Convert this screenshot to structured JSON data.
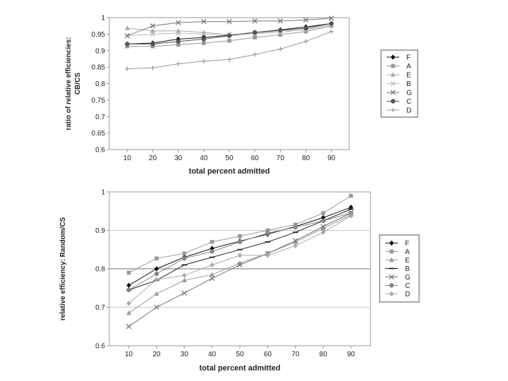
{
  "chart_data": [
    {
      "type": "line",
      "title": "",
      "xlabel": "total percent admitted",
      "ylabel_lines": [
        "ratio of relative efficiencies:",
        "CB/CS"
      ],
      "x": [
        10,
        20,
        30,
        40,
        50,
        60,
        70,
        80,
        90
      ],
      "ylim": [
        0.6,
        1
      ],
      "yticks": [
        0.6,
        0.65,
        0.7,
        0.75,
        0.8,
        0.85,
        0.9,
        0.95,
        1
      ],
      "ytick_labels": [
        "0.6",
        "0.65",
        "0.7",
        "0.75",
        "0.8",
        "0.85",
        "0.9",
        "0.95",
        "1"
      ],
      "grid": "none",
      "legend_position": "right",
      "series": [
        {
          "name": "F",
          "marker": "diamond",
          "color": "#111111",
          "values": [
            0.92,
            0.923,
            0.935,
            0.94,
            0.947,
            0.955,
            0.963,
            0.972,
            0.982
          ]
        },
        {
          "name": "A",
          "marker": "square",
          "color": "#999999",
          "values": [
            0.913,
            0.913,
            0.918,
            0.923,
            0.93,
            0.94,
            0.948,
            0.958,
            0.975
          ]
        },
        {
          "name": "E",
          "marker": "triangle",
          "color": "#aaaaaa",
          "values": [
            0.968,
            0.96,
            0.96,
            0.955,
            0.948,
            0.952,
            0.96,
            0.963,
            0.978
          ]
        },
        {
          "name": "B",
          "marker": "x",
          "color": "#bbbbbb",
          "values": [
            0.945,
            0.95,
            0.953,
            0.95,
            0.95,
            0.952,
            0.955,
            0.965,
            0.978
          ]
        },
        {
          "name": "G",
          "marker": "x",
          "color": "#777777",
          "values": [
            0.945,
            0.975,
            0.985,
            0.988,
            0.988,
            0.99,
            0.99,
            0.993,
            0.998
          ]
        },
        {
          "name": "C",
          "marker": "circle",
          "color": "#555555",
          "values": [
            0.92,
            0.92,
            0.928,
            0.935,
            0.945,
            0.955,
            0.962,
            0.968,
            0.982
          ]
        },
        {
          "name": "D",
          "marker": "plus",
          "color": "#999999",
          "values": [
            0.845,
            0.848,
            0.86,
            0.868,
            0.873,
            0.888,
            0.905,
            0.928,
            0.958
          ]
        }
      ]
    },
    {
      "type": "line",
      "title": "",
      "xlabel": "total percent admitted",
      "ylabel_lines": [
        "relative efficiency: Random/CS"
      ],
      "x": [
        10,
        20,
        30,
        40,
        50,
        60,
        70,
        80,
        90
      ],
      "ylim": [
        0.6,
        1
      ],
      "yticks": [
        0.6,
        0.7,
        0.8,
        0.9,
        1
      ],
      "ytick_labels": [
        "0.6",
        "0.7",
        "0.8",
        "0.9",
        "1"
      ],
      "grid": "horizontal",
      "legend_position": "right",
      "series": [
        {
          "name": "F",
          "marker": "diamond",
          "color": "#111111",
          "values": [
            0.757,
            0.8,
            0.83,
            0.853,
            0.872,
            0.89,
            0.91,
            0.933,
            0.96
          ]
        },
        {
          "name": "A",
          "marker": "square",
          "color": "#999999",
          "values": [
            0.79,
            0.827,
            0.84,
            0.87,
            0.885,
            0.9,
            0.915,
            0.945,
            0.99
          ]
        },
        {
          "name": "E",
          "marker": "triangle",
          "color": "#999999",
          "values": [
            0.685,
            0.735,
            0.77,
            0.785,
            0.815,
            0.84,
            0.87,
            0.905,
            0.94
          ]
        },
        {
          "name": "B",
          "marker": "dash",
          "color": "#222222",
          "values": [
            0.745,
            0.77,
            0.81,
            0.83,
            0.85,
            0.87,
            0.895,
            0.925,
            0.955
          ]
        },
        {
          "name": "G",
          "marker": "x",
          "color": "#777777",
          "values": [
            0.65,
            0.7,
            0.737,
            0.775,
            0.81,
            0.84,
            0.873,
            0.91,
            0.945
          ]
        },
        {
          "name": "C",
          "marker": "circle",
          "color": "#888888",
          "values": [
            0.745,
            0.787,
            0.827,
            0.845,
            0.87,
            0.893,
            0.908,
            0.925,
            0.945
          ]
        },
        {
          "name": "D",
          "marker": "diamond",
          "color": "#aaaaaa",
          "values": [
            0.71,
            0.772,
            0.783,
            0.81,
            0.835,
            0.835,
            0.86,
            0.895,
            0.938
          ]
        }
      ]
    }
  ]
}
